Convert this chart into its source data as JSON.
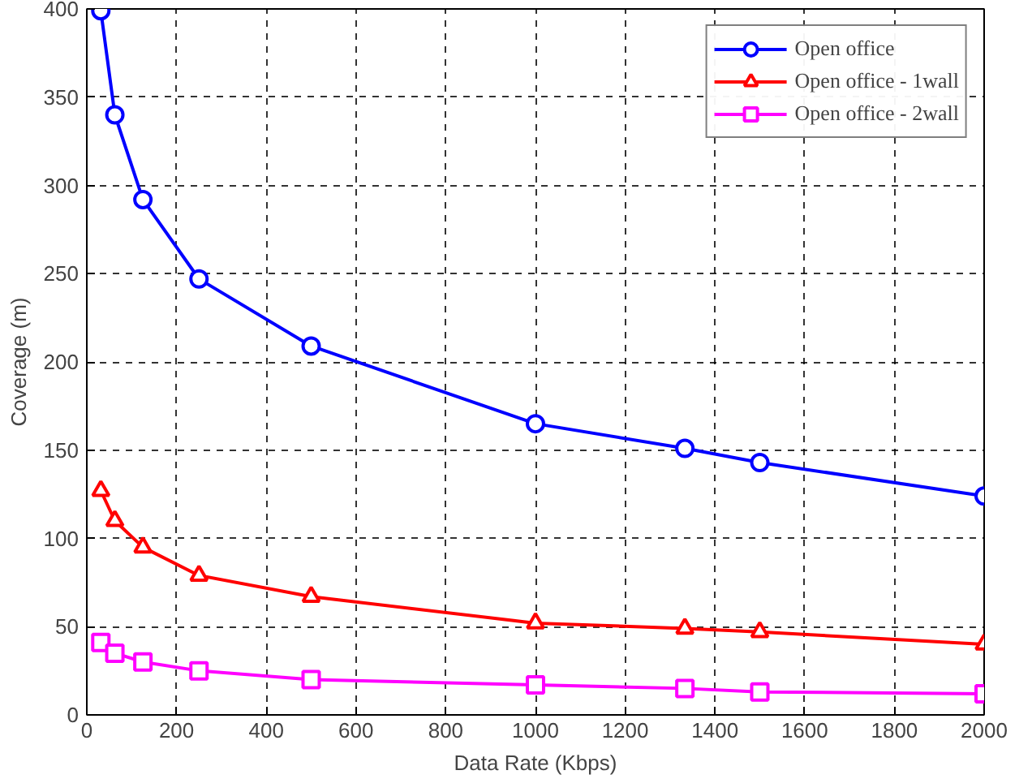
{
  "chart_data": {
    "type": "line",
    "xlabel": "Data Rate (Kbps)",
    "ylabel": "Coverage (m)",
    "x": [
      31.25,
      62.5,
      125,
      250,
      500,
      1000,
      1333,
      1500,
      2000
    ],
    "series": [
      {
        "name": "Open office",
        "color": "#0000ff",
        "marker": "circle",
        "values": [
          399,
          340,
          292,
          247,
          209,
          165,
          151,
          143,
          124
        ]
      },
      {
        "name": "Open office - 1wall",
        "color": "#ff0000",
        "marker": "triangle",
        "values": [
          127,
          110,
          95,
          79,
          67,
          52,
          49,
          47,
          40
        ]
      },
      {
        "name": "Open office - 2wall",
        "color": "#ff00ff",
        "marker": "square",
        "values": [
          41,
          35,
          30,
          25,
          20,
          17,
          15,
          13,
          12
        ]
      }
    ],
    "xlim": [
      0,
      2000
    ],
    "ylim": [
      0,
      400
    ],
    "xticks": [
      0,
      200,
      400,
      600,
      800,
      1000,
      1200,
      1400,
      1600,
      1800,
      2000
    ],
    "yticks": [
      0,
      50,
      100,
      150,
      200,
      250,
      300,
      350,
      400
    ],
    "grid": true,
    "legend": "top right",
    "line_style": "solid"
  }
}
